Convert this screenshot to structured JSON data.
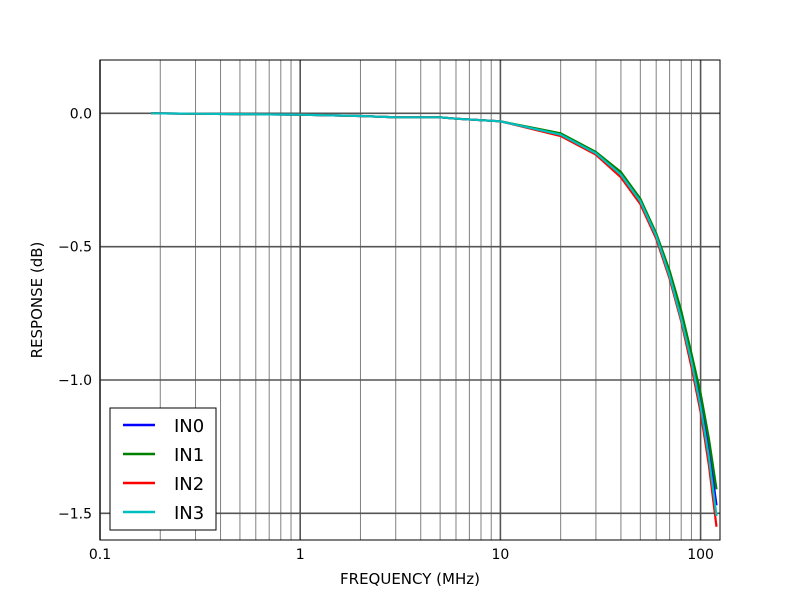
{
  "chart_data": {
    "type": "line",
    "title": "",
    "xlabel": "FREQUENCY (MHz)",
    "ylabel": "RESPONSE (dB)",
    "xscale": "log",
    "xlim": [
      0.1,
      125
    ],
    "ylim": [
      -1.6,
      0.2
    ],
    "xticks": [
      {
        "v": 0.1,
        "label": "0.1"
      },
      {
        "v": 1,
        "label": "1"
      },
      {
        "v": 10,
        "label": "10"
      },
      {
        "v": 100,
        "label": "100"
      }
    ],
    "yticks": [
      {
        "v": 0,
        "label": "0.0"
      },
      {
        "v": -0.5,
        "label": "−0.5"
      },
      {
        "v": -1,
        "label": "−1.0"
      },
      {
        "v": -1.5,
        "label": "−1.5"
      }
    ],
    "grid": true,
    "legend": "lower-left",
    "x": [
      0.18,
      1,
      2,
      3,
      5,
      6,
      10,
      20,
      30,
      40,
      50,
      60,
      70,
      80,
      90,
      100,
      110,
      120
    ],
    "series": [
      {
        "name": "IN0",
        "color": "#0000ff",
        "values": [
          0,
          -0.005,
          -0.01,
          -0.015,
          -0.015,
          -0.02,
          -0.03,
          -0.08,
          -0.15,
          -0.23,
          -0.33,
          -0.46,
          -0.6,
          -0.76,
          -0.92,
          -1.08,
          -1.26,
          -1.47
        ]
      },
      {
        "name": "IN1",
        "color": "#008000",
        "values": [
          0,
          -0.005,
          -0.01,
          -0.015,
          -0.015,
          -0.02,
          -0.03,
          -0.075,
          -0.145,
          -0.22,
          -0.32,
          -0.45,
          -0.59,
          -0.74,
          -0.9,
          -1.05,
          -1.22,
          -1.41
        ]
      },
      {
        "name": "IN2",
        "color": "#ff0000",
        "values": [
          0,
          -0.005,
          -0.01,
          -0.015,
          -0.015,
          -0.02,
          -0.03,
          -0.085,
          -0.155,
          -0.24,
          -0.34,
          -0.47,
          -0.62,
          -0.78,
          -0.95,
          -1.12,
          -1.32,
          -1.55
        ]
      },
      {
        "name": "IN3",
        "color": "#00bfbf",
        "values": [
          0,
          -0.005,
          -0.01,
          -0.015,
          -0.015,
          -0.02,
          -0.03,
          -0.08,
          -0.15,
          -0.23,
          -0.33,
          -0.46,
          -0.61,
          -0.77,
          -0.93,
          -1.1,
          -1.29,
          -1.51
        ]
      }
    ]
  }
}
